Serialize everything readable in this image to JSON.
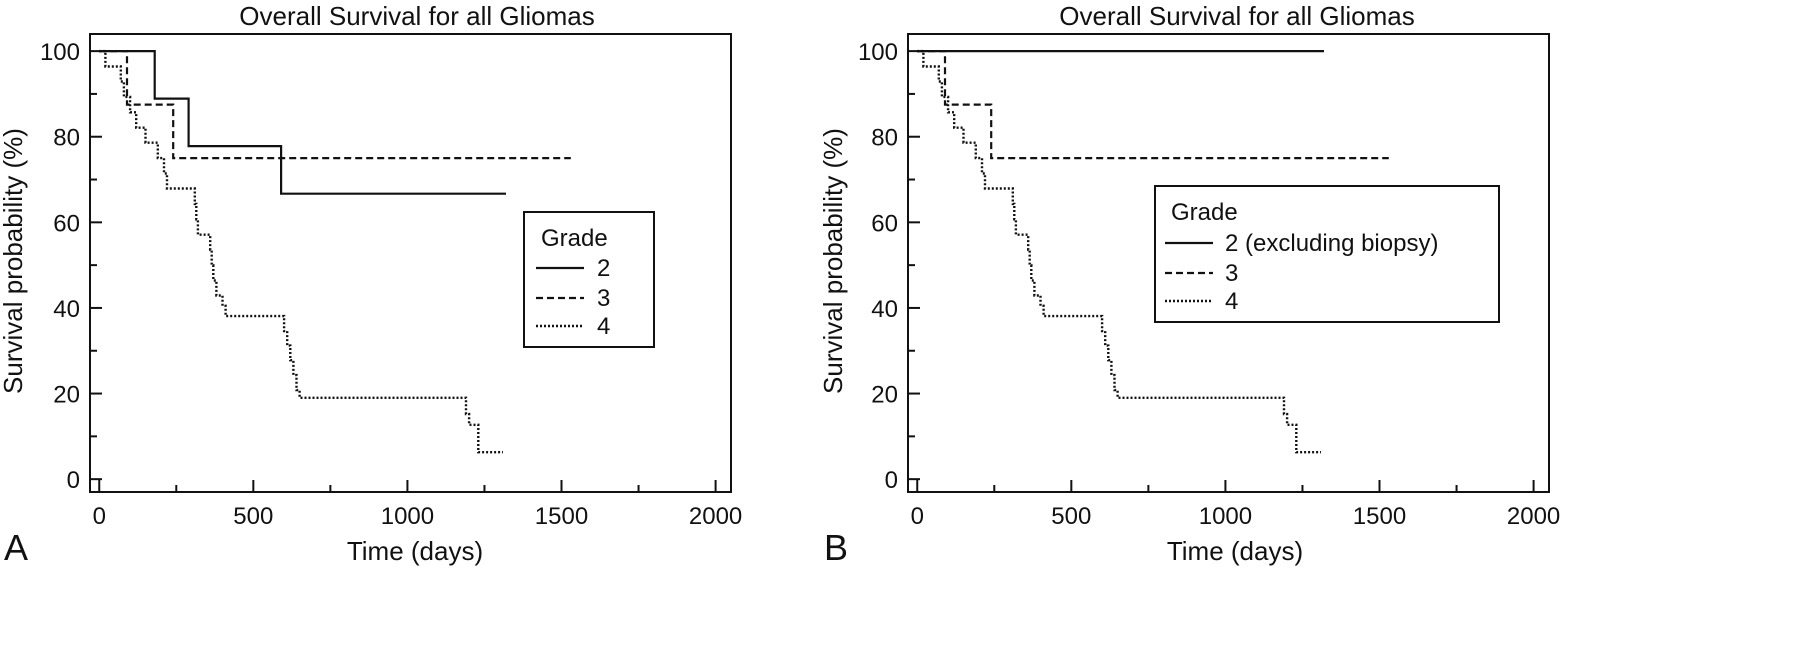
{
  "figure": {
    "panels": [
      "A",
      "B"
    ]
  },
  "chart_data": [
    {
      "type": "line",
      "subtype": "kaplan-meier step curves",
      "panel_label": "A",
      "title": "Overall Survival for all Gliomas",
      "xlabel": "Time (days)",
      "ylabel": "Survival probability (%)",
      "xlim": [
        -30,
        2050
      ],
      "ylim": [
        -3,
        104
      ],
      "xticks": [
        0,
        500,
        1000,
        1500,
        2000
      ],
      "yticks": [
        0,
        20,
        40,
        60,
        80,
        100
      ],
      "legend": {
        "title": "Grade",
        "position": "right"
      },
      "series": [
        {
          "name": "2",
          "style": "solid",
          "steps": [
            [
              0,
              100
            ],
            [
              180,
              100
            ],
            [
              180,
              88.9
            ],
            [
              290,
              88.9
            ],
            [
              290,
              77.8
            ],
            [
              590,
              77.8
            ],
            [
              590,
              66.7
            ],
            [
              1320,
              66.7
            ]
          ]
        },
        {
          "name": "3",
          "style": "dashed",
          "steps": [
            [
              0,
              100
            ],
            [
              90,
              100
            ],
            [
              90,
              87.5
            ],
            [
              240,
              87.5
            ],
            [
              240,
              75
            ],
            [
              1530,
              75
            ]
          ]
        },
        {
          "name": "4",
          "style": "dotted",
          "steps": [
            [
              0,
              100
            ],
            [
              20,
              100
            ],
            [
              20,
              96.4
            ],
            [
              70,
              96.4
            ],
            [
              70,
              92.9
            ],
            [
              80,
              92.9
            ],
            [
              80,
              89.3
            ],
            [
              100,
              89.3
            ],
            [
              100,
              85.7
            ],
            [
              120,
              85.7
            ],
            [
              120,
              82.1
            ],
            [
              150,
              82.1
            ],
            [
              150,
              78.6
            ],
            [
              190,
              78.6
            ],
            [
              190,
              75
            ],
            [
              210,
              75
            ],
            [
              210,
              71.4
            ],
            [
              220,
              71.4
            ],
            [
              220,
              67.9
            ],
            [
              310,
              67.9
            ],
            [
              310,
              64.3
            ],
            [
              315,
              64.3
            ],
            [
              315,
              60.7
            ],
            [
              320,
              60.7
            ],
            [
              320,
              57.1
            ],
            [
              360,
              57.1
            ],
            [
              360,
              53.6
            ],
            [
              365,
              53.6
            ],
            [
              365,
              50
            ],
            [
              370,
              50
            ],
            [
              370,
              46.4
            ],
            [
              380,
              46.4
            ],
            [
              380,
              42.9
            ],
            [
              400,
              42.9
            ],
            [
              400,
              40.5
            ],
            [
              410,
              40.5
            ],
            [
              410,
              38.1
            ],
            [
              600,
              38.1
            ],
            [
              600,
              34.6
            ],
            [
              610,
              34.6
            ],
            [
              610,
              31.2
            ],
            [
              620,
              31.2
            ],
            [
              620,
              27.8
            ],
            [
              630,
              27.8
            ],
            [
              630,
              24.3
            ],
            [
              640,
              24.3
            ],
            [
              640,
              20.8
            ],
            [
              650,
              20.8
            ],
            [
              650,
              19
            ],
            [
              1190,
              19
            ],
            [
              1190,
              15.2
            ],
            [
              1200,
              15.2
            ],
            [
              1200,
              12.7
            ],
            [
              1230,
              12.7
            ],
            [
              1230,
              6.3
            ],
            [
              1310,
              6.3
            ]
          ]
        }
      ]
    },
    {
      "type": "line",
      "subtype": "kaplan-meier step curves",
      "panel_label": "B",
      "title": "Overall Survival for all Gliomas",
      "xlabel": "Time (days)",
      "ylabel": "Survival probability (%)",
      "xlim": [
        -30,
        2050
      ],
      "ylim": [
        -3,
        104
      ],
      "xticks": [
        0,
        500,
        1000,
        1500,
        2000
      ],
      "yticks": [
        0,
        20,
        40,
        60,
        80,
        100
      ],
      "legend": {
        "title": "Grade",
        "position": "right"
      },
      "series": [
        {
          "name": "2 (excluding biopsy)",
          "style": "solid",
          "steps": [
            [
              0,
              100
            ],
            [
              1320,
              100
            ]
          ]
        },
        {
          "name": "3",
          "style": "dashed",
          "steps": [
            [
              0,
              100
            ],
            [
              90,
              100
            ],
            [
              90,
              87.5
            ],
            [
              240,
              87.5
            ],
            [
              240,
              75
            ],
            [
              1530,
              75
            ]
          ]
        },
        {
          "name": "4",
          "style": "dotted",
          "steps": [
            [
              0,
              100
            ],
            [
              20,
              100
            ],
            [
              20,
              96.4
            ],
            [
              70,
              96.4
            ],
            [
              70,
              92.9
            ],
            [
              80,
              92.9
            ],
            [
              80,
              89.3
            ],
            [
              100,
              89.3
            ],
            [
              100,
              85.7
            ],
            [
              120,
              85.7
            ],
            [
              120,
              82.1
            ],
            [
              150,
              82.1
            ],
            [
              150,
              78.6
            ],
            [
              190,
              78.6
            ],
            [
              190,
              75
            ],
            [
              210,
              75
            ],
            [
              210,
              71.4
            ],
            [
              220,
              71.4
            ],
            [
              220,
              67.9
            ],
            [
              310,
              67.9
            ],
            [
              310,
              64.3
            ],
            [
              315,
              64.3
            ],
            [
              315,
              60.7
            ],
            [
              320,
              60.7
            ],
            [
              320,
              57.1
            ],
            [
              360,
              57.1
            ],
            [
              360,
              53.6
            ],
            [
              365,
              53.6
            ],
            [
              365,
              50
            ],
            [
              370,
              50
            ],
            [
              370,
              46.4
            ],
            [
              380,
              46.4
            ],
            [
              380,
              42.9
            ],
            [
              400,
              42.9
            ],
            [
              400,
              40.5
            ],
            [
              410,
              40.5
            ],
            [
              410,
              38.1
            ],
            [
              600,
              38.1
            ],
            [
              600,
              34.6
            ],
            [
              610,
              34.6
            ],
            [
              610,
              31.2
            ],
            [
              620,
              31.2
            ],
            [
              620,
              27.8
            ],
            [
              630,
              27.8
            ],
            [
              630,
              24.3
            ],
            [
              640,
              24.3
            ],
            [
              640,
              20.8
            ],
            [
              650,
              20.8
            ],
            [
              650,
              19
            ],
            [
              1190,
              19
            ],
            [
              1190,
              15.2
            ],
            [
              1200,
              15.2
            ],
            [
              1200,
              12.7
            ],
            [
              1230,
              12.7
            ],
            [
              1230,
              6.3
            ],
            [
              1310,
              6.3
            ]
          ]
        }
      ]
    }
  ]
}
